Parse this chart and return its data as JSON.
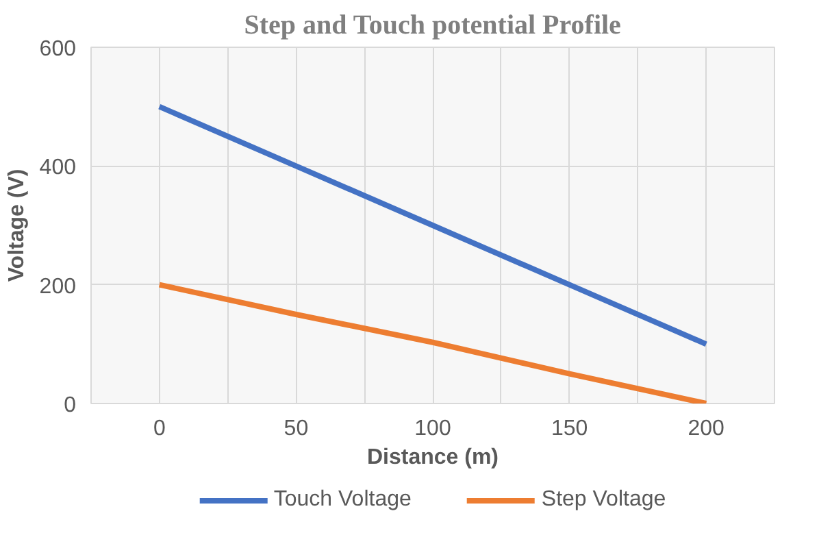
{
  "chart_data": {
    "type": "line",
    "title": "Step and Touch potential Profile",
    "xlabel": "Distance (m)",
    "ylabel": "Voltage (V)",
    "x": [
      0,
      50,
      100,
      150,
      200
    ],
    "series": [
      {
        "name": "Touch Voltage",
        "color": "#4472c4",
        "values": [
          500,
          400,
          300,
          200,
          100
        ]
      },
      {
        "name": "Step Voltage",
        "color": "#ed7d31",
        "values": [
          200,
          150,
          103,
          50,
          0
        ]
      }
    ],
    "xlim": [
      -25,
      225
    ],
    "xticks": [
      {
        "value": -25,
        "label": null
      },
      0,
      {
        "value": 25,
        "label": null
      },
      50,
      {
        "value": 75,
        "label": null
      },
      100,
      {
        "value": 125,
        "label": null
      },
      150,
      {
        "value": 175,
        "label": null
      },
      200,
      {
        "value": 225,
        "label": null
      }
    ],
    "ylim": [
      0,
      600
    ],
    "yticks": [
      0,
      200,
      400,
      600
    ],
    "grid": true,
    "legend": "bottom",
    "marker": "none",
    "line_style": "solid"
  }
}
